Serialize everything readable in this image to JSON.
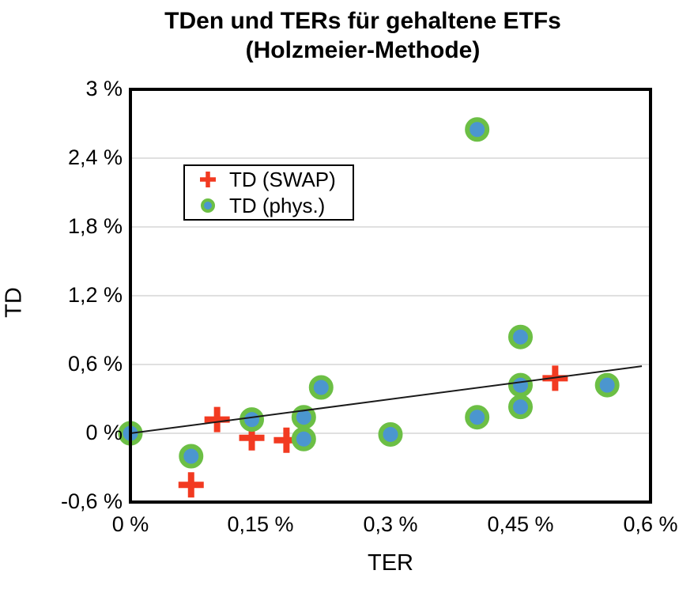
{
  "title": {
    "line1": "TDen und TERs für gehaltene ETFs",
    "line2": "(Holzmeier-Methode)"
  },
  "axes": {
    "x": {
      "label": "TER",
      "tick_values": [
        0,
        0.15,
        0.3,
        0.45,
        0.6
      ],
      "tick_labels": [
        "0 %",
        "0,15 %",
        "0,3 %",
        "0,45 %",
        "0,6 %"
      ]
    },
    "y": {
      "label": "TD",
      "tick_values": [
        3,
        2.4,
        1.8,
        1.2,
        0.6,
        0,
        -0.6
      ],
      "tick_labels": [
        "3 %",
        "2,4 %",
        "1,8 %",
        "1,2 %",
        "0,6 %",
        "0 %",
        "-0,6 %"
      ],
      "gridline_values": [
        2.4,
        1.8,
        1.2,
        0.6,
        0
      ]
    }
  },
  "legend": {
    "items": [
      {
        "label": "TD (SWAP)",
        "marker": "plus"
      },
      {
        "label": "TD (phys.)",
        "marker": "circle"
      }
    ]
  },
  "colors": {
    "swap_red": "#f23a21",
    "phys_ring_green": "#6cbf45",
    "phys_fill_blue": "#4b96cf",
    "gridline": "#e0e0e0",
    "frame": "#000000",
    "trend_line": "#1a1a1a",
    "background": "#ffffff"
  },
  "chart_data": {
    "type": "scatter",
    "title": "TDen und TERs für gehaltene ETFs (Holzmeier-Methode)",
    "xlabel": "TER",
    "ylabel": "TD",
    "x_unit": "%",
    "y_unit": "%",
    "xlim": [
      0,
      0.6
    ],
    "ylim": [
      -0.6,
      3
    ],
    "grid": "horizontal-only",
    "legend_position": "upper-left-inside",
    "series": [
      {
        "name": "TD (SWAP)",
        "marker": "plus",
        "color": "#f23a21",
        "points": [
          [
            0.07,
            -0.45
          ],
          [
            0.1,
            0.12
          ],
          [
            0.14,
            -0.04
          ],
          [
            0.18,
            -0.06
          ],
          [
            0.49,
            0.48
          ]
        ]
      },
      {
        "name": "TD (phys.)",
        "marker": "circle",
        "fill": "#4b96cf",
        "ring": "#6cbf45",
        "points": [
          [
            0.0,
            0.0
          ],
          [
            0.07,
            -0.2
          ],
          [
            0.14,
            0.12
          ],
          [
            0.2,
            0.14
          ],
          [
            0.2,
            -0.05
          ],
          [
            0.22,
            0.4
          ],
          [
            0.3,
            -0.01
          ],
          [
            0.4,
            0.14
          ],
          [
            0.4,
            2.65
          ],
          [
            0.45,
            0.84
          ],
          [
            0.45,
            0.42
          ],
          [
            0.45,
            0.23
          ],
          [
            0.55,
            0.42
          ]
        ]
      }
    ],
    "trend_line": {
      "from": [
        0,
        0
      ],
      "to": [
        0.59,
        0.585
      ]
    }
  }
}
